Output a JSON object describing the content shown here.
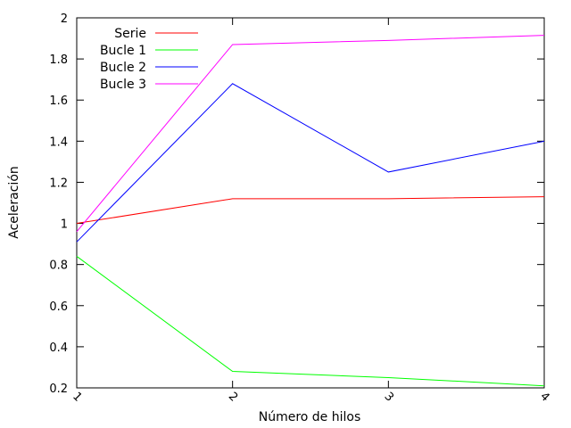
{
  "chart_data": {
    "type": "line",
    "title": "",
    "xlabel": "Número de hilos",
    "ylabel": "Aceleración",
    "x": [
      1,
      2,
      3,
      4
    ],
    "xlim": [
      1,
      4
    ],
    "ylim": [
      0.2,
      2
    ],
    "xticks": [
      "1",
      "2",
      "3",
      "4"
    ],
    "yticks": [
      "0.2",
      "0.4",
      "0.6",
      "0.8",
      "1",
      "1.2",
      "1.4",
      "1.6",
      "1.8",
      "2"
    ],
    "grid": false,
    "legend_position": "top-left",
    "series": [
      {
        "name": "Serie",
        "color": "#ff0000",
        "values": [
          1.0,
          1.12,
          1.12,
          1.13
        ]
      },
      {
        "name": "Bucle 1",
        "color": "#00ff00",
        "values": [
          0.84,
          0.28,
          0.25,
          0.21
        ]
      },
      {
        "name": "Bucle 2",
        "color": "#0000ff",
        "values": [
          0.91,
          1.68,
          1.25,
          1.4
        ]
      },
      {
        "name": "Bucle 3",
        "color": "#ff00ff",
        "values": [
          0.96,
          1.87,
          1.89,
          1.915
        ]
      }
    ]
  }
}
